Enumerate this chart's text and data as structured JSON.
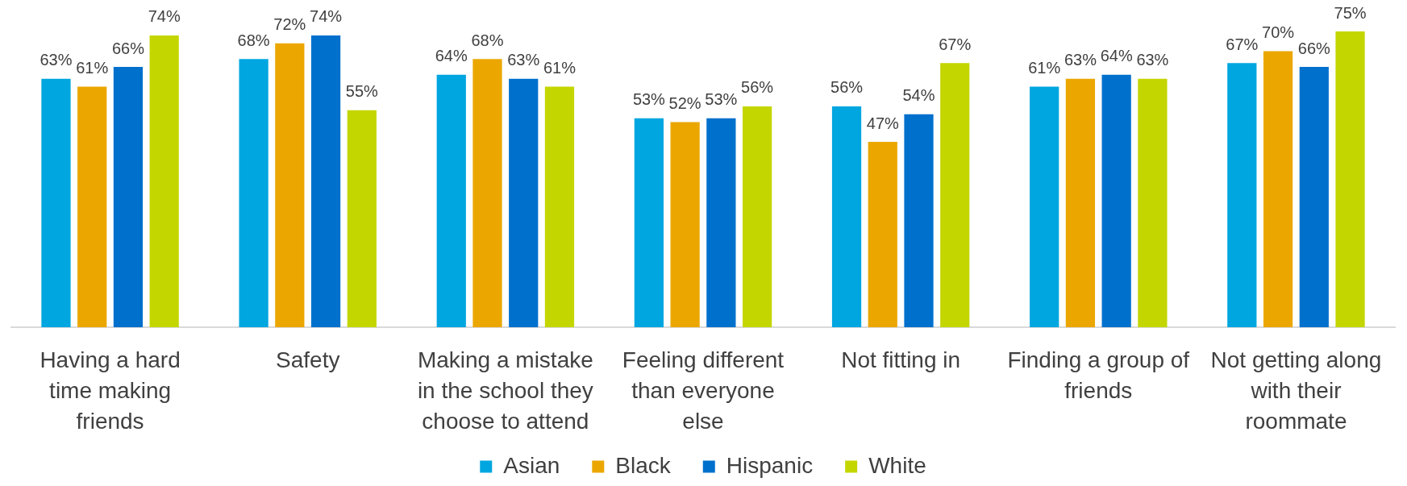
{
  "chart_data": {
    "type": "bar",
    "categories": [
      "Having a hard time making friends",
      "Safety",
      "Making a mistake in the school they choose to attend",
      "Feeling different than everyone else",
      "Not fitting in",
      "Finding a group of friends",
      "Not getting along with their roommate"
    ],
    "series": [
      {
        "name": "Asian",
        "color": "#00a6e0",
        "values": [
          63,
          68,
          64,
          53,
          56,
          61,
          67
        ],
        "value_labels": [
          "63%",
          "68%",
          "64%",
          "53%",
          "56%",
          "61%",
          "67%"
        ]
      },
      {
        "name": "Black",
        "color": "#eba700",
        "values": [
          61,
          72,
          68,
          52,
          47,
          63,
          70
        ],
        "value_labels": [
          "61%",
          "72%",
          "68%",
          "52%",
          "47%",
          "63%",
          "70%"
        ]
      },
      {
        "name": "Hispanic",
        "color": "#0070cd",
        "values": [
          66,
          74,
          63,
          53,
          54,
          64,
          66
        ],
        "value_labels": [
          "66%",
          "74%",
          "63%",
          "53%",
          "54%",
          "64%",
          "66%"
        ]
      },
      {
        "name": "White",
        "color": "#c4d600",
        "values": [
          74,
          55,
          61,
          56,
          67,
          63,
          75
        ],
        "value_labels": [
          "74%",
          "55%",
          "61%",
          "56%",
          "67%",
          "63%",
          "75%"
        ]
      }
    ],
    "legend": "bottom"
  }
}
